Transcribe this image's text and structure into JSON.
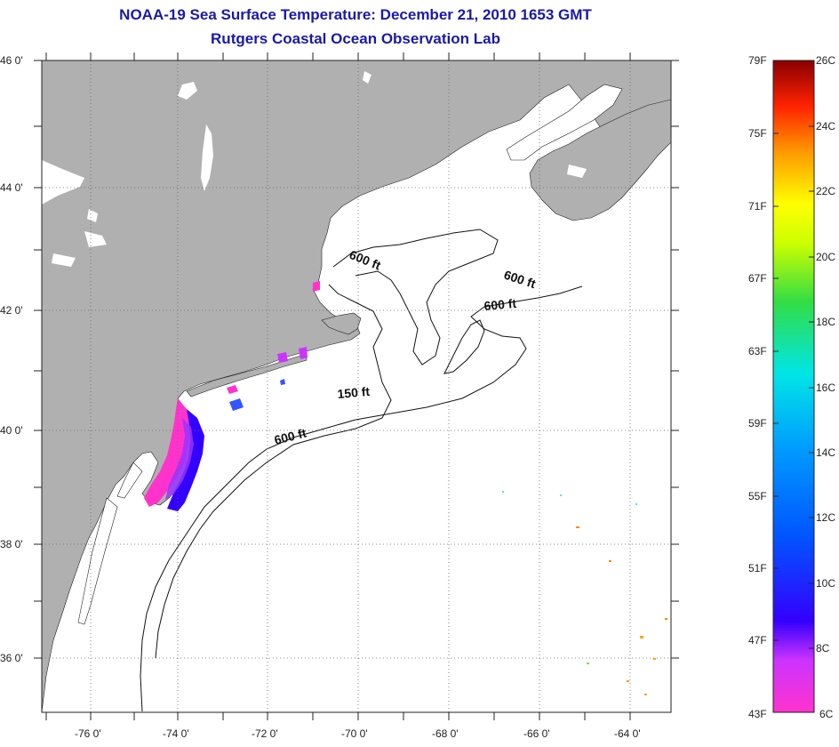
{
  "title": {
    "line1": "NOAA-19 Sea Surface Temperature:  December 21, 2010 1653 GMT",
    "line2": "Rutgers Coastal Ocean Observation Lab"
  },
  "map": {
    "lat_labels": [
      "46 0'",
      "44 0'",
      "42 0'",
      "40 0'",
      "38 0'",
      "36 0'"
    ],
    "lon_labels": [
      "-76 0'",
      "-74 0'",
      "-72 0'",
      "-70 0'",
      "-68 0'",
      "-66 0'",
      "-64 0'"
    ],
    "contours": [
      "600 ft",
      "600 ft",
      "600 ft",
      "150 ft",
      "600 ft"
    ]
  },
  "colorbar": {
    "fahrenheit": [
      "79F",
      "75F",
      "71F",
      "67F",
      "63F",
      "59F",
      "55F",
      "51F",
      "47F",
      "43F"
    ],
    "celsius": [
      "26C",
      "24C",
      "22C",
      "20C",
      "18C",
      "16C",
      "14C",
      "12C",
      "10C",
      "8C",
      "6C"
    ]
  },
  "colors": {
    "title": "#1a1aa6",
    "land": "#b0b0b0",
    "water": "#ffffff"
  }
}
